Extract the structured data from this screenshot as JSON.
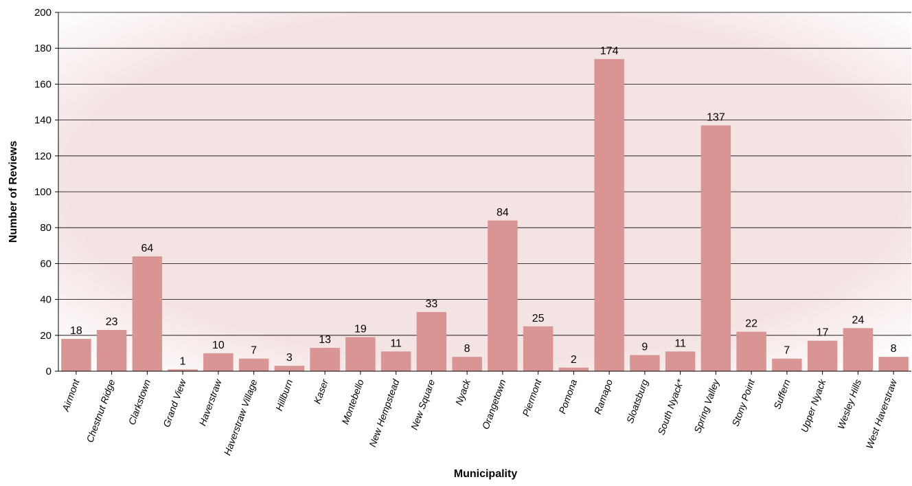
{
  "chart_data": {
    "type": "bar",
    "title": "",
    "xlabel": "Municipality",
    "ylabel": "Number of Reviews",
    "ylim": [
      0,
      200
    ],
    "ytick_step": 20,
    "grid": true,
    "legend": "none",
    "categories": [
      "Airmont",
      "Chestnut Ridge",
      "Clarkstown",
      "Grand View",
      "Haverstraw",
      "Haverstraw Village",
      "Hillburn",
      "Kaser",
      "Montebello",
      "New Hempstead",
      "New Square",
      "Nyack",
      "Orangetown",
      "Piermont",
      "Pomona",
      "Ramapo",
      "Sloatsburg",
      "South Nyack*",
      "Spring Valley",
      "Stony Point",
      "Suffern",
      "Upper Nyack",
      "Wesley Hills",
      "West Haverstraw"
    ],
    "values": [
      18,
      23,
      64,
      1,
      10,
      7,
      3,
      13,
      19,
      11,
      33,
      8,
      84,
      25,
      2,
      174,
      9,
      11,
      137,
      22,
      7,
      17,
      24,
      8
    ],
    "bar_color": "#d99594",
    "plot_background": "#f4e3e3"
  }
}
